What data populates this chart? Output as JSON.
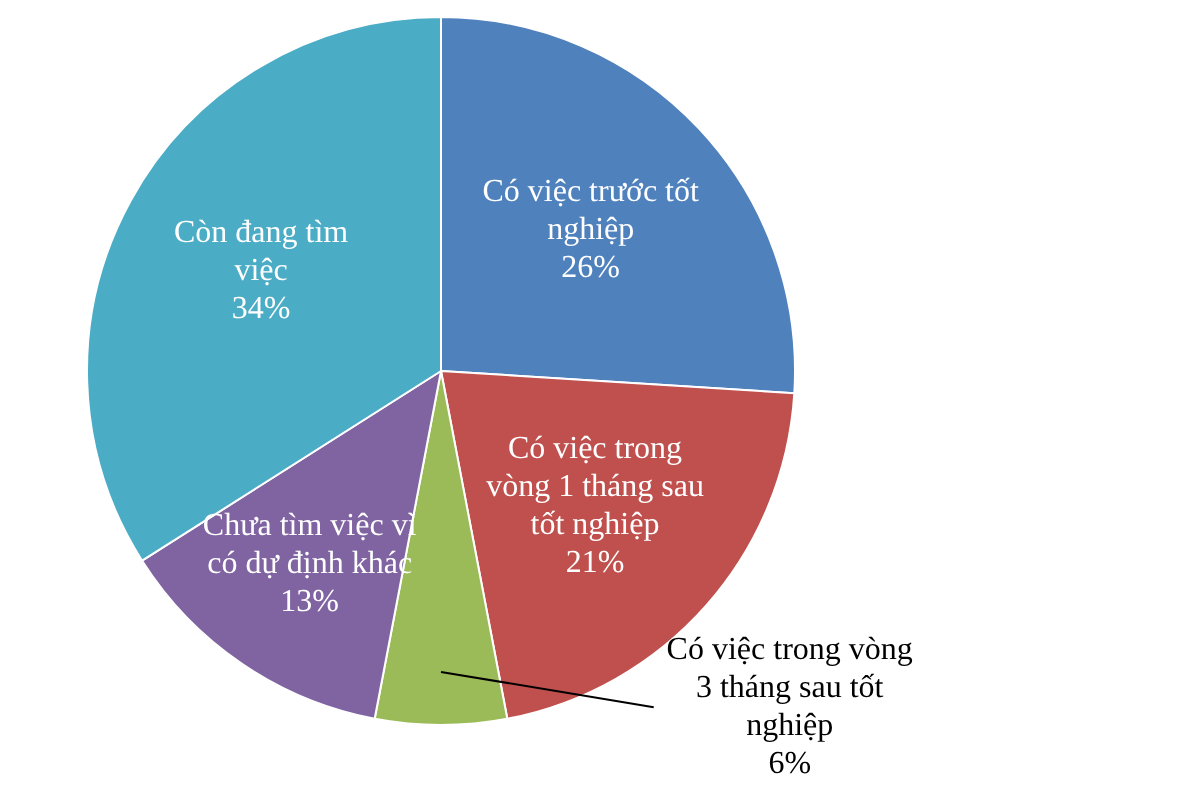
{
  "chart_data": {
    "type": "pie",
    "categories": [
      "Có việc trước tốt nghiệp",
      "Có việc trong vòng 1 tháng sau tốt nghiệp",
      "Có việc trong vòng 3 tháng sau tốt nghiệp",
      "Chưa tìm việc vì có dự định khác",
      "Còn đang tìm việc"
    ],
    "values": [
      26,
      21,
      6,
      13,
      34
    ],
    "value_labels": [
      "26%",
      "21%",
      "6%",
      "13%",
      "34%"
    ],
    "colors": [
      "#4f81bd",
      "#c0504d",
      "#9bbb59",
      "#8064a2",
      "#4bacc6"
    ]
  }
}
